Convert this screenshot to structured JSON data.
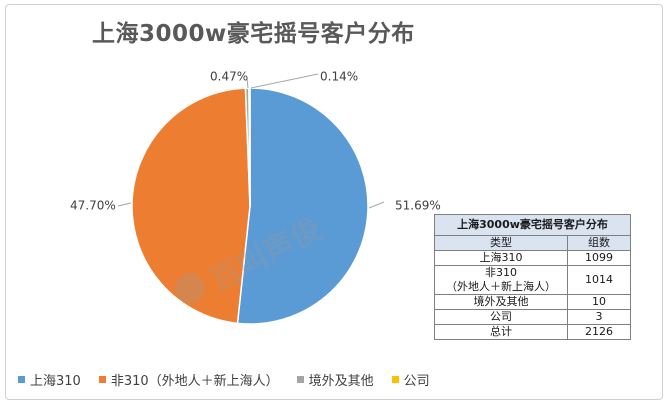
{
  "title": "上海3000w豪宅摇号客户分布",
  "chart_data": {
    "type": "pie",
    "categories": [
      "上海310",
      "非310（外地人＋新上海人）",
      "境外及其他",
      "公司"
    ],
    "values": [
      51.69,
      47.7,
      0.47,
      0.14
    ],
    "value_labels": [
      "51.69%",
      "47.70%",
      "0.47%",
      "0.14%"
    ],
    "colors": [
      "#5b9bd5",
      "#ed7d31",
      "#a5a5a5",
      "#ffc000"
    ],
    "legend_position": "bottom"
  },
  "watermark": "百叫声俊",
  "table": {
    "caption": "上海3000w豪宅摇号客户分布",
    "headers": [
      "类型",
      "组数"
    ],
    "rows": [
      {
        "type_line1": "上海310",
        "type_line2": "",
        "count": "1099"
      },
      {
        "type_line1": "非310",
        "type_line2": "（外地人＋新上海人）",
        "count": "1014"
      },
      {
        "type_line1": "境外及其他",
        "type_line2": "",
        "count": "10"
      },
      {
        "type_line1": "公司",
        "type_line2": "",
        "count": "3"
      },
      {
        "type_line1": "总计",
        "type_line2": "",
        "count": "2126"
      }
    ]
  },
  "legend": [
    {
      "label": "上海310",
      "color": "#5b9bd5"
    },
    {
      "label": "非310（外地人＋新上海人）",
      "color": "#ed7d31"
    },
    {
      "label": "境外及其他",
      "color": "#a5a5a5"
    },
    {
      "label": "公司",
      "color": "#ffc000"
    }
  ]
}
